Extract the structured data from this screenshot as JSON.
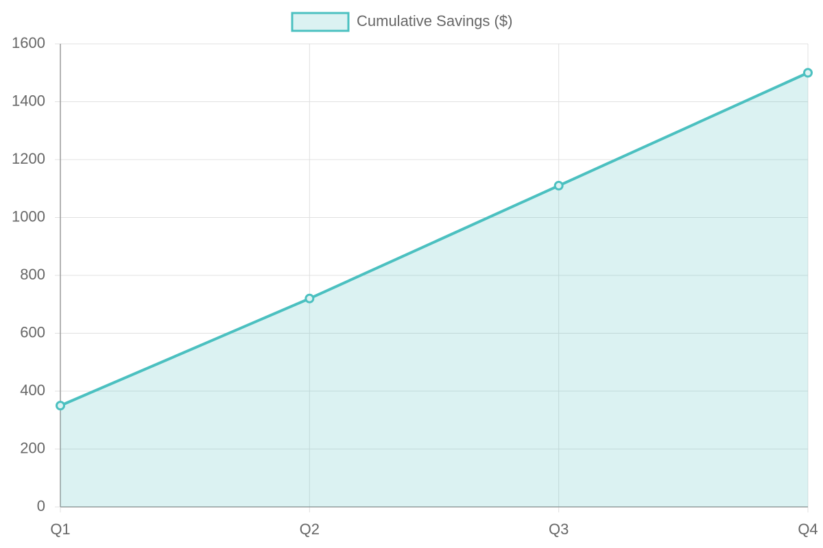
{
  "chart_data": {
    "type": "line",
    "fill": true,
    "categories": [
      "Q1",
      "Q2",
      "Q3",
      "Q4"
    ],
    "series": [
      {
        "name": "Cumulative Savings ($)",
        "color": "#4bc0c0",
        "values": [
          350,
          720,
          1110,
          1500
        ]
      }
    ],
    "ylim": [
      0,
      1600
    ],
    "yticks": [
      0,
      200,
      400,
      600,
      800,
      1000,
      1200,
      1400,
      1600
    ],
    "grid": true,
    "legend": "top"
  }
}
